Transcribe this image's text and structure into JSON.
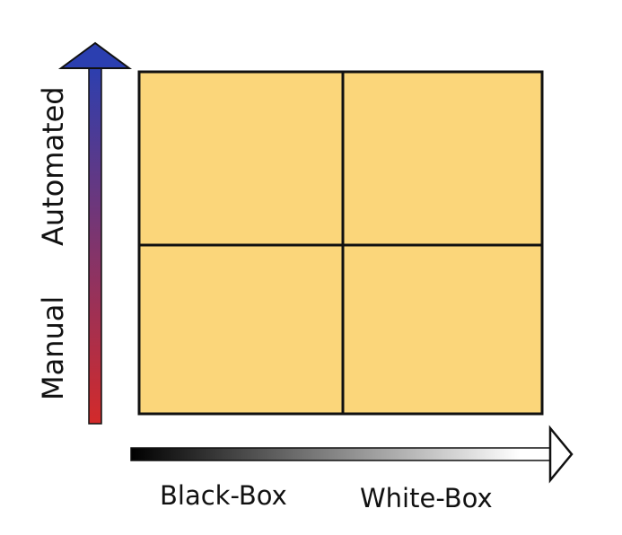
{
  "diagram": {
    "y_axis": {
      "low_label": "Manual",
      "high_label": "Automated",
      "gradient_low_color": "#d32a2a",
      "gradient_high_color": "#2b3fb0"
    },
    "x_axis": {
      "low_label": "Black-Box",
      "high_label": "White-Box",
      "gradient_low_color": "#000000",
      "gradient_high_color": "#ffffff"
    },
    "quadrants": {
      "fill_color": "#fbd67a",
      "border_color": "#111111",
      "count": 4
    }
  }
}
